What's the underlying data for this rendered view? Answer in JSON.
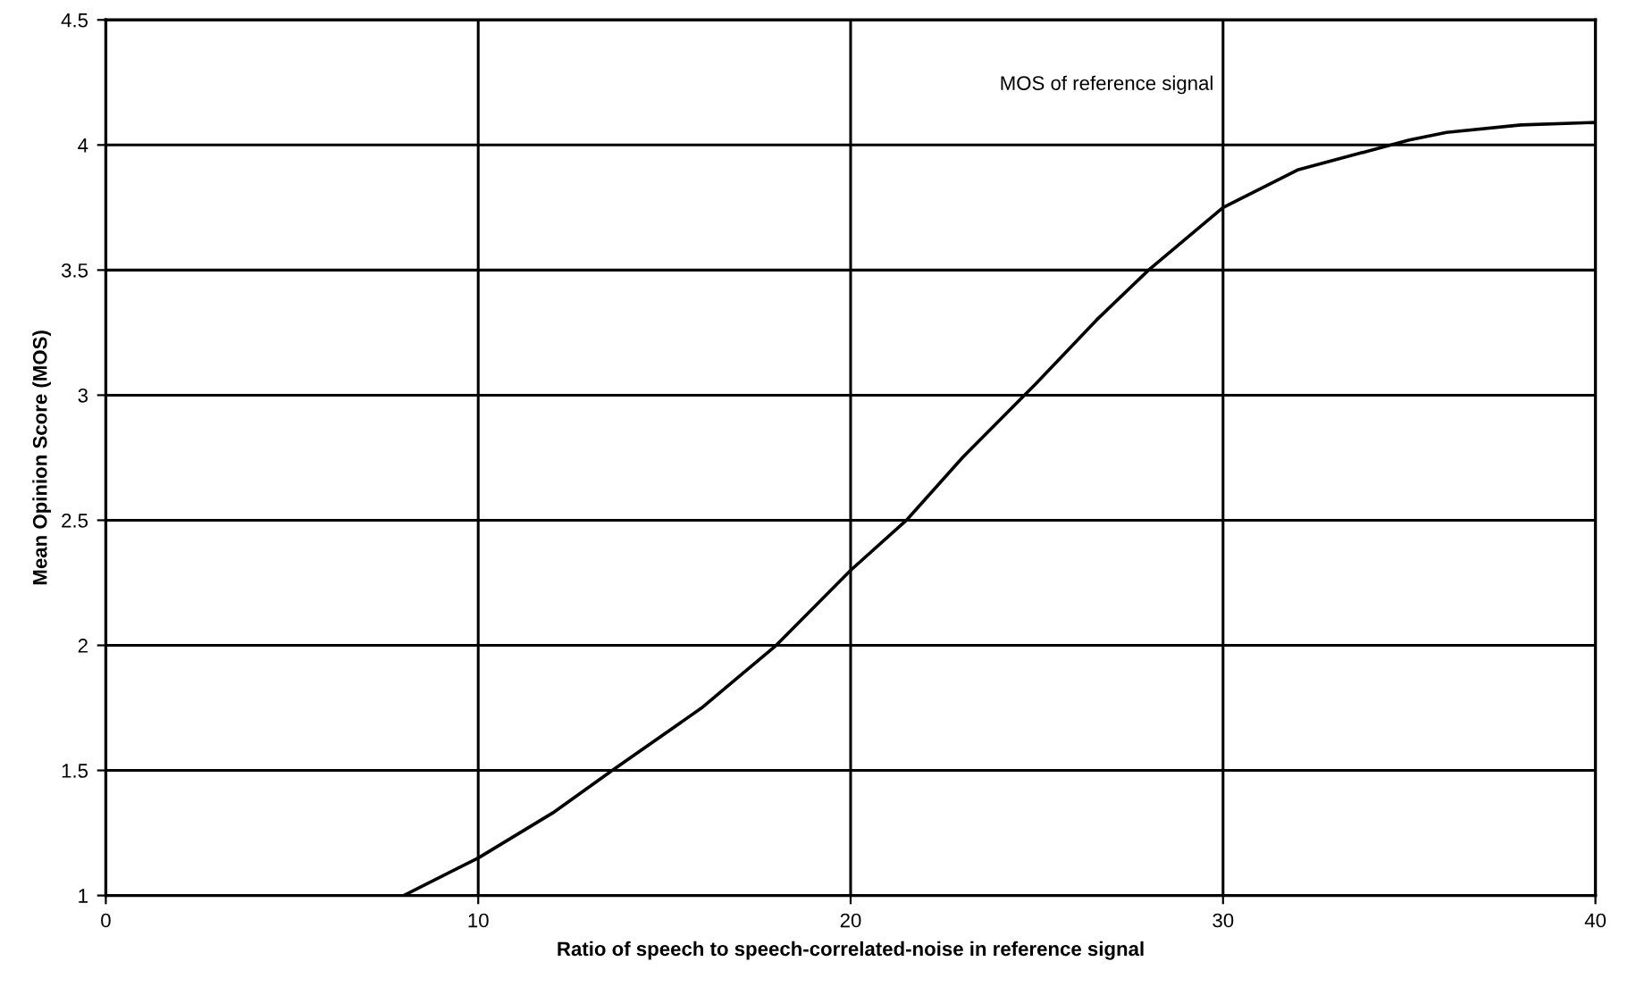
{
  "chart_data": {
    "type": "line",
    "xlabel": "Ratio of speech to speech-correlated-noise in reference signal",
    "ylabel": "Mean Opinion Score (MOS)",
    "x": [
      8,
      10,
      12,
      13.6,
      16,
      18,
      20,
      21.5,
      23,
      25,
      26.6,
      28,
      30,
      32,
      34,
      35,
      36,
      38,
      40
    ],
    "series": [
      {
        "color": "#000000",
        "values": [
          1.0,
          1.15,
          1.33,
          1.5,
          1.75,
          2.0,
          2.3,
          2.5,
          2.75,
          3.05,
          3.3,
          3.5,
          3.75,
          3.9,
          3.98,
          4.02,
          4.05,
          4.08,
          4.09
        ]
      }
    ],
    "xlim": [
      0,
      40
    ],
    "xticks": [
      0,
      10,
      20,
      30,
      40
    ],
    "ylim": [
      1,
      4.5
    ],
    "yticks": [
      1,
      1.5,
      2,
      2.5,
      3,
      3.5,
      4,
      4.5
    ],
    "grid": true,
    "marker": "none",
    "line_style": "solid",
    "annotations": [
      "MOS of reference signal"
    ]
  }
}
